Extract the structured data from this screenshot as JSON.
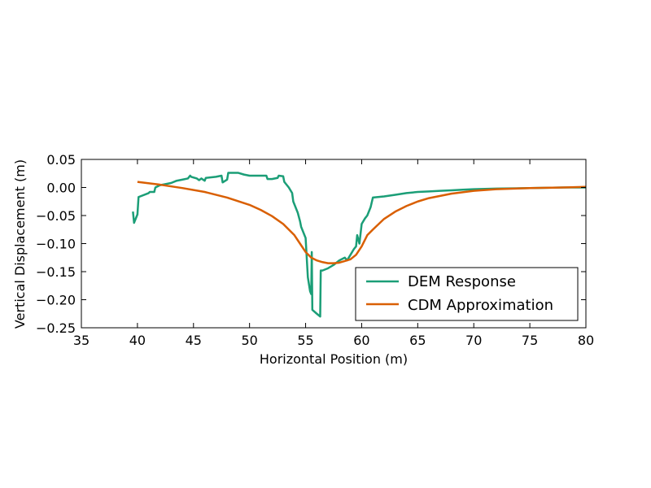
{
  "chart_data": {
    "type": "line",
    "title": "",
    "xlabel": "Horizontal Position (m)",
    "ylabel": "Vertical Displacement (m)",
    "xlim": [
      35,
      80
    ],
    "ylim": [
      -0.25,
      0.05
    ],
    "xticks": [
      35,
      40,
      45,
      50,
      55,
      60,
      65,
      70,
      75,
      80
    ],
    "yticks": [
      0.05,
      0.0,
      -0.05,
      -0.1,
      -0.15,
      -0.2,
      -0.25
    ],
    "xtick_labels": [
      "35",
      "40",
      "45",
      "50",
      "55",
      "60",
      "65",
      "70",
      "75",
      "80"
    ],
    "ytick_labels": [
      "0.05",
      "0.00",
      "−0.05",
      "−0.10",
      "−0.15",
      "−0.20",
      "−0.25"
    ],
    "grid": false,
    "legend_position": "bottom-right",
    "series": [
      {
        "name": "DEM Response",
        "color": "#1b9e77",
        "x": [
          39.6,
          39.7,
          40.0,
          40.1,
          41.0,
          41.1,
          41.5,
          41.6,
          42.0,
          43.0,
          43.5,
          44.0,
          44.5,
          44.7,
          44.8,
          45.3,
          45.5,
          45.7,
          46.0,
          46.1,
          47.0,
          47.5,
          47.6,
          48.0,
          48.1,
          49.0,
          49.5,
          50.0,
          51.0,
          51.5,
          51.6,
          52.0,
          52.5,
          52.6,
          53.0,
          53.1,
          53.5,
          53.8,
          53.9,
          54.2,
          54.3,
          54.5,
          54.6,
          55.0,
          55.2,
          55.4,
          55.5,
          55.55,
          55.6,
          56.0,
          56.3,
          56.35,
          56.5,
          57.0,
          57.5,
          58.0,
          58.3,
          58.5,
          58.7,
          59.0,
          59.3,
          59.5,
          59.6,
          59.8,
          60.0,
          60.3,
          60.5,
          60.7,
          60.8,
          61.0,
          62.0,
          63.0,
          64.0,
          65.0,
          66.0,
          67.0,
          68.0,
          69.0,
          70.0,
          72.0,
          75.0,
          78.0,
          80.0
        ],
        "values": [
          -0.043,
          -0.063,
          -0.048,
          -0.017,
          -0.01,
          -0.008,
          -0.008,
          0.0,
          0.004,
          0.008,
          0.012,
          0.014,
          0.016,
          0.021,
          0.019,
          0.016,
          0.013,
          0.016,
          0.012,
          0.017,
          0.019,
          0.021,
          0.009,
          0.014,
          0.026,
          0.026,
          0.023,
          0.021,
          0.021,
          0.021,
          0.015,
          0.015,
          0.017,
          0.021,
          0.02,
          0.01,
          0.0,
          -0.01,
          -0.025,
          -0.04,
          -0.045,
          -0.06,
          -0.07,
          -0.09,
          -0.16,
          -0.185,
          -0.19,
          -0.115,
          -0.218,
          -0.225,
          -0.23,
          -0.148,
          -0.148,
          -0.144,
          -0.138,
          -0.13,
          -0.127,
          -0.125,
          -0.13,
          -0.12,
          -0.11,
          -0.105,
          -0.085,
          -0.1,
          -0.065,
          -0.055,
          -0.05,
          -0.04,
          -0.035,
          -0.018,
          -0.016,
          -0.013,
          -0.01,
          -0.008,
          -0.007,
          -0.006,
          -0.005,
          -0.004,
          -0.003,
          -0.002,
          -0.001,
          0.0,
          0.0
        ]
      },
      {
        "name": "CDM Approximation",
        "color": "#d95f02",
        "x": [
          40,
          42,
          44,
          46,
          48,
          50,
          51,
          52,
          53,
          54,
          54.5,
          55,
          55.5,
          56,
          56.5,
          57,
          57.5,
          58,
          58.5,
          59,
          59.5,
          60,
          60.5,
          61,
          62,
          63,
          64,
          65,
          66,
          68,
          70,
          72,
          75,
          78,
          80
        ],
        "values": [
          0.01,
          0.005,
          -0.001,
          -0.008,
          -0.018,
          -0.031,
          -0.04,
          -0.051,
          -0.065,
          -0.085,
          -0.1,
          -0.115,
          -0.125,
          -0.13,
          -0.133,
          -0.135,
          -0.135,
          -0.134,
          -0.131,
          -0.128,
          -0.12,
          -0.105,
          -0.085,
          -0.075,
          -0.056,
          -0.043,
          -0.033,
          -0.025,
          -0.019,
          -0.011,
          -0.006,
          -0.003,
          -0.001,
          0.0,
          0.001
        ]
      }
    ]
  }
}
